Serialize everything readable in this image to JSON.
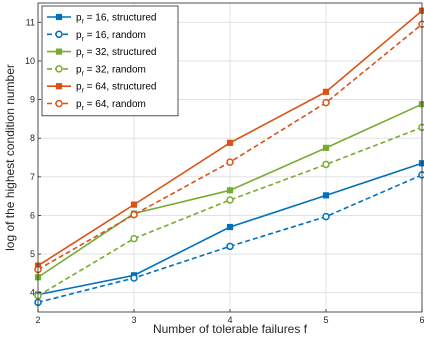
{
  "chart_data": {
    "type": "line",
    "xlabel": "Number of tolerable failures f",
    "ylabel": "log of the highest condition number",
    "x": [
      2,
      3,
      4,
      5,
      6
    ],
    "xlim": [
      2,
      6
    ],
    "ylim": [
      3.5,
      11.5
    ],
    "xticks": [
      "2",
      "3",
      "4",
      "5",
      "6"
    ],
    "yticks": [
      "4",
      "5",
      "6",
      "7",
      "8",
      "9",
      "10",
      "11"
    ],
    "grid": true,
    "legend_position": "top-left",
    "series": [
      {
        "name": "p_r = 16, structured",
        "legend_prefix": "p",
        "legend_sub": "r",
        "legend_suffix": " = 16, structured",
        "color": "#0072bd",
        "dash": "solid",
        "marker": "square",
        "values": [
          3.95,
          4.45,
          5.7,
          6.52,
          7.35
        ]
      },
      {
        "name": "p_r = 16, random",
        "legend_prefix": "p",
        "legend_sub": "r",
        "legend_suffix": " = 16, random",
        "color": "#0072bd",
        "dash": "dashed",
        "marker": "circle",
        "values": [
          3.75,
          4.38,
          5.2,
          5.97,
          7.05
        ]
      },
      {
        "name": "p_r = 32, structured",
        "legend_prefix": "p",
        "legend_sub": "r",
        "legend_suffix": " = 32, structured",
        "color": "#77ac30",
        "dash": "solid",
        "marker": "square",
        "values": [
          4.4,
          6.05,
          6.65,
          7.75,
          8.88
        ]
      },
      {
        "name": "p_r = 32, random",
        "legend_prefix": "p",
        "legend_sub": "r",
        "legend_suffix": " = 32, random",
        "color": "#77ac30",
        "dash": "dashed",
        "marker": "circle",
        "values": [
          3.92,
          5.4,
          6.4,
          7.32,
          8.28
        ]
      },
      {
        "name": "p_r = 64, structured",
        "legend_prefix": "p",
        "legend_sub": "r",
        "legend_suffix": " = 64, structured",
        "color": "#d95319",
        "dash": "solid",
        "marker": "square",
        "values": [
          4.7,
          6.28,
          7.88,
          9.2,
          11.3
        ]
      },
      {
        "name": "p_r = 64, random",
        "legend_prefix": "p",
        "legend_sub": "r",
        "legend_suffix": " = 64, random",
        "color": "#d95319",
        "dash": "dashed",
        "marker": "circle",
        "values": [
          4.6,
          6.02,
          7.38,
          8.92,
          10.95
        ]
      }
    ]
  }
}
